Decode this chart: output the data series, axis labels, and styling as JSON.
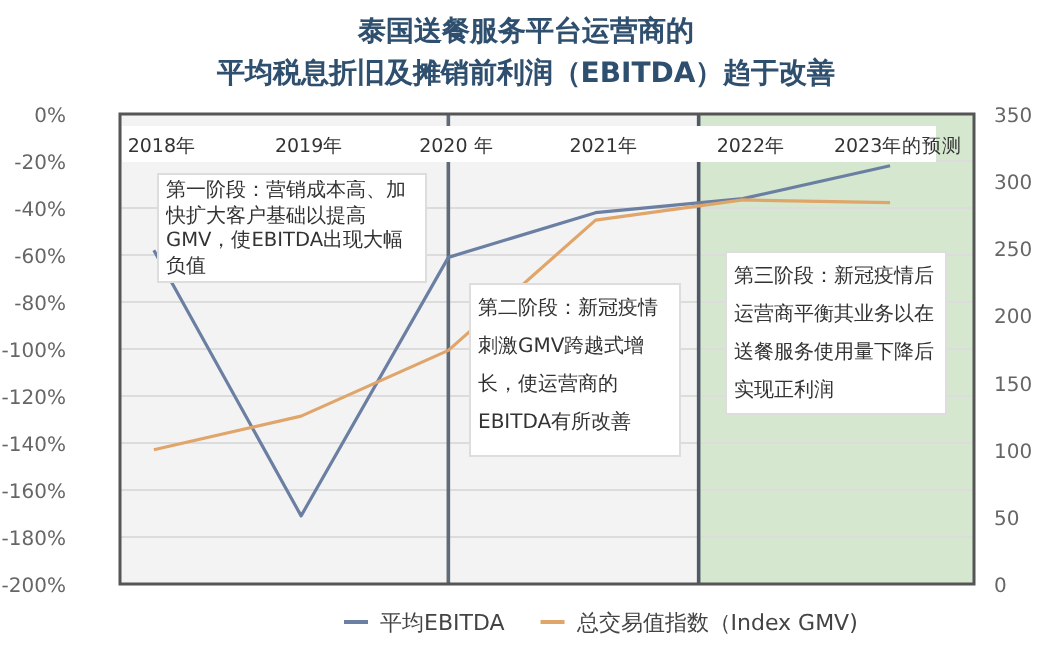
{
  "chart_data": {
    "type": "line",
    "title": "泰国送餐服务平台运营商的",
    "subtitle": "平均税息折旧及摊销前利润（EBITDA）趋于改善",
    "x": [
      2018,
      2019,
      2020,
      2021,
      2022,
      2023
    ],
    "xlim": [
      2017.77,
      2023.57
    ],
    "xticks": [
      {
        "value": 2018,
        "label": "2018年"
      },
      {
        "value": 2019,
        "label": "2019年"
      },
      {
        "value": 2020,
        "label": "2020 年"
      },
      {
        "value": 2021,
        "label": "2021年"
      },
      {
        "value": 2022,
        "label": "2022年"
      },
      {
        "value": 2023,
        "label": "2023年的预测"
      }
    ],
    "ylim": [
      -200,
      0
    ],
    "yticks": [
      {
        "value": 0,
        "label": "0%"
      },
      {
        "value": -20,
        "label": "-20%"
      },
      {
        "value": -40,
        "label": "-40%"
      },
      {
        "value": -60,
        "label": "-60%"
      },
      {
        "value": -80,
        "label": "-80%"
      },
      {
        "value": -100,
        "label": "-100%"
      },
      {
        "value": -120,
        "label": "-120%"
      },
      {
        "value": -140,
        "label": "-140%"
      },
      {
        "value": -160,
        "label": "-160%"
      },
      {
        "value": -180,
        "label": "-180%"
      },
      {
        "value": -200,
        "label": "-200%"
      }
    ],
    "y2lim": [
      0,
      350
    ],
    "y2ticks": [
      0,
      50,
      100,
      150,
      200,
      250,
      300,
      350
    ],
    "series": [
      {
        "name": "平均EBITDA",
        "color": "#6b7fa3",
        "values": [
          -58,
          -171,
          -61,
          -42,
          -36,
          -22
        ]
      },
      {
        "name": "总交易值指数（Index GMV)",
        "color": "#e0a56a",
        "axis": "y2",
        "values": [
          100,
          125,
          174,
          271,
          286,
          284
        ]
      }
    ],
    "ref_lines": [
      {
        "axis": "x",
        "value": 2020,
        "color": "#5f6b7a"
      },
      {
        "axis": "x",
        "value": 2021.7,
        "color": "#4f5a66"
      }
    ],
    "bands": [
      {
        "axis": "x",
        "from": 2021.7,
        "to": 2023.57,
        "color": "#d5e8cf"
      }
    ],
    "annotations": [
      "第一阶段：营销成本高、加快扩大客户基础以提高GMV，使EBITDA出现大幅负值",
      "第二阶段：新冠疫情刺激GMV跨越式增长，使运营商的EBITDA有所改善",
      "第三阶段：新冠疫情后运营商平衡其业务以在送餐服务使用量下降后实现正利润"
    ],
    "grid": "y",
    "legend": "bottom"
  }
}
